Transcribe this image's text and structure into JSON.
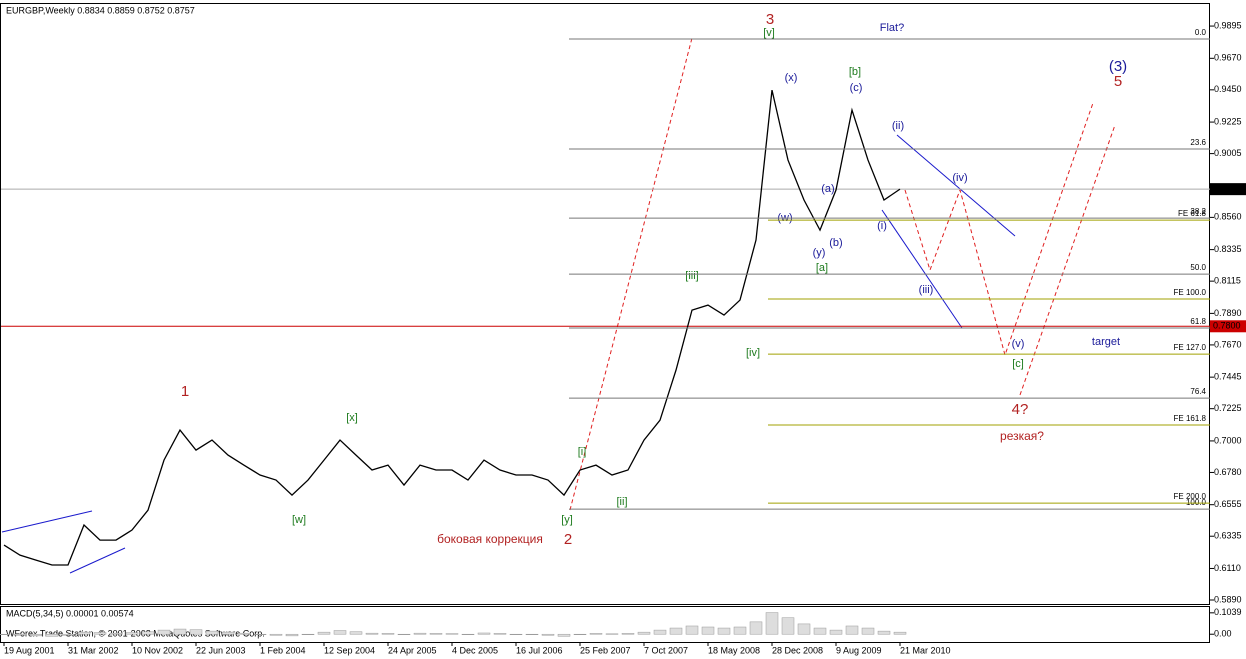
{
  "chart_data": {
    "type": "line",
    "title": "EURGBP,Weekly  0.8834 0.8859 0.8752 0.8757",
    "color": "#000000",
    "categories": [
      "19 Aug 2001",
      null,
      null,
      null,
      "31 Mar 2002",
      null,
      null,
      null,
      "10 Nov 2002",
      null,
      null,
      null,
      "22 Jun 2003",
      null,
      null,
      null,
      "1 Feb 2004",
      null,
      null,
      null,
      "12 Sep 2004",
      null,
      null,
      null,
      "24 Apr 2005",
      null,
      null,
      null,
      "4 Dec 2005",
      null,
      null,
      null,
      "16 Jul 2006",
      null,
      null,
      null,
      "25 Feb 2007",
      null,
      null,
      null,
      "7 Oct 2007",
      null,
      null,
      null,
      "18 May 2008",
      null,
      null,
      null,
      "28 Dec 2008",
      null,
      null,
      null,
      "9 Aug 2009",
      null,
      null,
      null,
      "21 Mar 2010"
    ],
    "values": [
      0.6273,
      0.6203,
      0.6168,
      0.6134,
      0.6134,
      0.6413,
      0.6308,
      0.6308,
      0.6378,
      0.6517,
      0.6866,
      0.7076,
      0.6936,
      0.7006,
      0.6901,
      0.6831,
      0.6762,
      0.6727,
      0.6622,
      0.6727,
      0.6866,
      0.7006,
      0.6901,
      0.6797,
      0.6831,
      0.6692,
      0.6831,
      0.6797,
      0.6797,
      0.6727,
      0.6866,
      0.6797,
      0.6762,
      0.6762,
      0.6727,
      0.6622,
      0.6797,
      0.6831,
      0.6762,
      0.6797,
      0.7006,
      0.7145,
      0.7494,
      0.7913,
      0.7948,
      0.7878,
      0.7983,
      0.8402,
      0.9448,
      0.896,
      0.8681,
      0.8471,
      0.8751,
      0.9309,
      0.896,
      0.8681,
      0.8757
    ],
    "ylim": [
      0.5862,
      1.0049
    ],
    "yticks": [
      0.9895,
      {
        "value": 0.967,
        "label": "0.9670"
      },
      {
        "value": 0.945,
        "label": "0.9450"
      },
      0.9225,
      0.9005,
      {
        "value": 0.856,
        "label": "0.8560"
      },
      0.8335,
      0.8115,
      {
        "value": 0.789,
        "label": "0.7890"
      },
      {
        "value": 0.767,
        "label": "0.7670"
      },
      0.7445,
      0.7225,
      {
        "value": 0.7,
        "label": "0.7000"
      },
      {
        "value": 0.678,
        "label": "0.6780"
      },
      0.6555,
      0.6335,
      {
        "value": 0.611,
        "label": "0.6110"
      },
      {
        "value": 0.589,
        "label": "0.5890"
      }
    ],
    "price_markers": [
      {
        "value": 0.8757,
        "label": "0.8757",
        "color": "#000000"
      },
      {
        "value": 0.78,
        "label": "0.7800",
        "color": "#cc0000"
      }
    ],
    "fib_levels": [
      {
        "value": 0.9805,
        "label": "0.0"
      },
      {
        "value": 0.9037,
        "label": "23.6"
      },
      {
        "value": 0.8555,
        "label": "38.2"
      },
      {
        "value": 0.8164,
        "label": "50.0"
      },
      {
        "value": 0.7788,
        "label": "61.8"
      },
      {
        "value": 0.7299,
        "label": "76.4"
      },
      {
        "value": 0.6524,
        "label": "100.0"
      }
    ],
    "fe_levels": [
      {
        "value": 0.8541,
        "label": "FE 61.8"
      },
      {
        "value": 0.799,
        "label": "FE 100.0"
      },
      {
        "value": 0.7606,
        "label": "FE 127.0"
      },
      {
        "value": 0.7111,
        "label": "FE 161.8"
      },
      {
        "value": 0.6566,
        "label": "FE 200.0"
      }
    ],
    "macd": {
      "title": "MACD(5,34,5) 0.00001 0.00574",
      "ylim": [
        -0.0378,
        0.1322
      ],
      "yticks": [
        0.1039,
        {
          "value": 0,
          "label": "0.00"
        }
      ],
      "values": [
        0,
        -0.005,
        -0.008,
        -0.01,
        -0.005,
        0.01,
        0.008,
        0.005,
        0.008,
        0.012,
        0.02,
        0.025,
        0.022,
        0.015,
        0.01,
        0.005,
        0,
        -0.005,
        -0.008,
        0,
        0.01,
        0.018,
        0.012,
        0.005,
        0.004,
        0,
        0.005,
        0.004,
        0.003,
        0,
        0.006,
        0.004,
        0,
        -0.002,
        -0.005,
        -0.01,
        0,
        0.004,
        0.002,
        0.004,
        0.01,
        0.02,
        0.03,
        0.04,
        0.035,
        0.03,
        0.035,
        0.06,
        0.105,
        0.08,
        0.05,
        0.03,
        0.02,
        0.04,
        0.03,
        0.015,
        0.01
      ]
    },
    "annotations": [
      "3",
      "[v]",
      "Flat?",
      "(3)",
      "5",
      "(x)",
      "[b]",
      "(c)",
      "(ii)",
      "(iv)",
      "(a)",
      "(w)",
      "(i)",
      "(b)",
      "(y)",
      "[a]",
      "[iii]",
      "(iii)",
      "[iv]",
      "(v)",
      "target",
      "[c]",
      "4?",
      "резкая?",
      "1",
      "[x]",
      "[i]",
      "[ii]",
      "[w]",
      "[y]",
      "боковая коррекция",
      "2"
    ],
    "copyright": "WForex Trade Station, © 2001-2008 MetaQuotes Software Corp."
  }
}
